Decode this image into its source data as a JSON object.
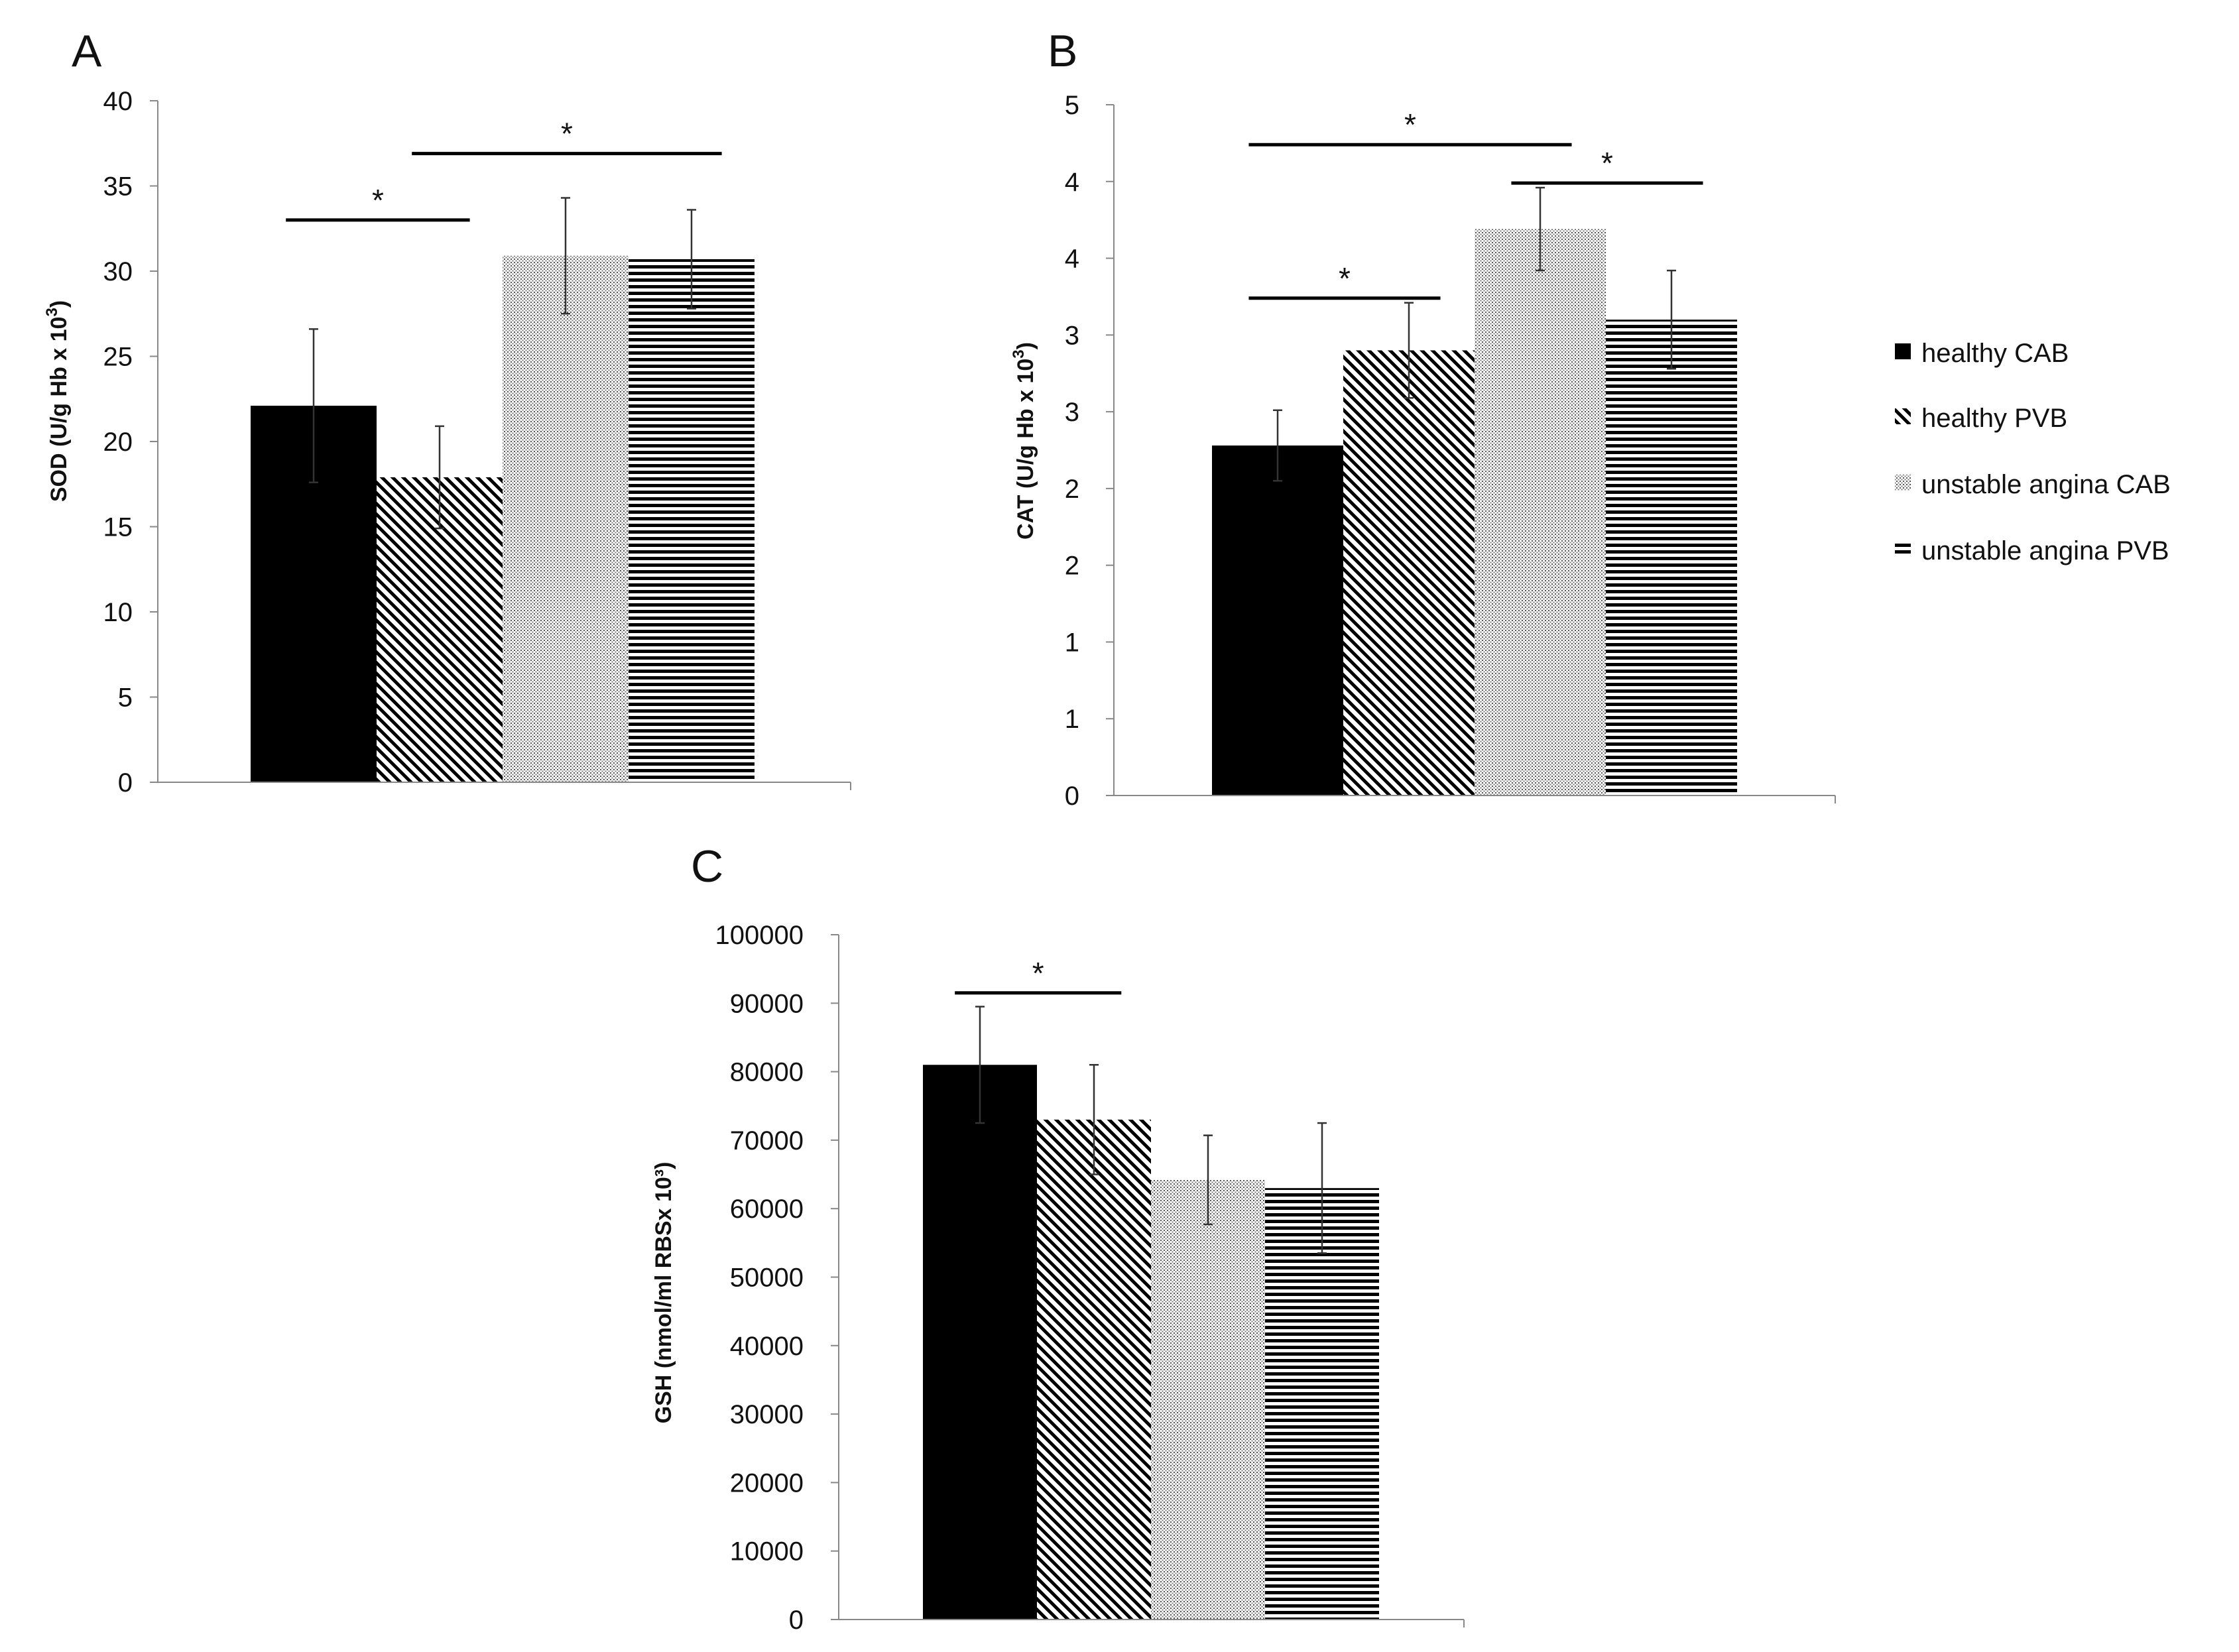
{
  "legend": {
    "items": [
      {
        "label": "healthy CAB",
        "pattern": "solid"
      },
      {
        "label": "healthy PVB",
        "pattern": "diag"
      },
      {
        "label": "unstable angina CAB",
        "pattern": "dots"
      },
      {
        "label": "unstable angina PVB",
        "pattern": "horiz"
      }
    ]
  },
  "colors": {
    "bar": "#000000",
    "axis": "#888888"
  },
  "chart_data": [
    {
      "panel": "A",
      "type": "bar",
      "ylabel": "SOD (U/g Hb x 10",
      "ylabel_sup": "3",
      "ylabel_close": ")",
      "ylim": [
        0,
        40
      ],
      "yticks": [
        0,
        5,
        10,
        15,
        20,
        25,
        30,
        35,
        40
      ],
      "ytick_labels": [
        "0",
        "5",
        "10",
        "15",
        "20",
        "25",
        "30",
        "35",
        "40"
      ],
      "categories": [
        "healthy CAB",
        "healthy PVB",
        "unstable angina CAB",
        "unstable angina PVB"
      ],
      "values": [
        22.1,
        17.9,
        30.9,
        30.7
      ],
      "errors": [
        4.5,
        3.0,
        3.4,
        2.9
      ],
      "significance": [
        {
          "from": 0,
          "to": 1,
          "y": 33,
          "label": "*"
        },
        {
          "from": 1,
          "to": 3,
          "y": 36.9,
          "label": "*"
        }
      ]
    },
    {
      "panel": "B",
      "type": "bar",
      "ylabel": "CAT (U/g Hb x 10",
      "ylabel_sup": "3",
      "ylabel_close": ")",
      "ylim": [
        0,
        4.5
      ],
      "yticks": [
        0,
        0.5,
        1,
        1.5,
        2,
        2.5,
        3,
        3.5,
        4,
        4.5
      ],
      "ytick_labels": [
        "0",
        "1",
        "1",
        "2",
        "2",
        "3",
        "3",
        "4",
        "4",
        "5"
      ],
      "categories": [
        "healthy CAB",
        "healthy PVB",
        "unstable angina CAB",
        "unstable angina PVB"
      ],
      "values": [
        2.28,
        2.9,
        3.69,
        3.1
      ],
      "errors": [
        0.23,
        0.31,
        0.27,
        0.32
      ],
      "significance": [
        {
          "from": 0,
          "to": 1,
          "y": 3.24,
          "label": "*"
        },
        {
          "from": 0,
          "to": 2,
          "y": 4.24,
          "label": "*"
        },
        {
          "from": 2,
          "to": 3,
          "y": 3.99,
          "label": "*"
        }
      ]
    },
    {
      "panel": "C",
      "type": "bar",
      "ylabel": "GSH (nmol/ml RBSx 10³)",
      "ylabel_sup": "",
      "ylabel_close": "",
      "ylim": [
        0,
        100000
      ],
      "yticks": [
        0,
        10000,
        20000,
        30000,
        40000,
        50000,
        60000,
        70000,
        80000,
        90000,
        100000
      ],
      "ytick_labels": [
        "0",
        "10000",
        "20000",
        "30000",
        "40000",
        "50000",
        "60000",
        "70000",
        "80000",
        "90000",
        "100000"
      ],
      "categories": [
        "healthy CAB",
        "healthy PVB",
        "unstable angina CAB",
        "unstable angina PVB"
      ],
      "values": [
        81000,
        73000,
        64200,
        63000
      ],
      "errors": [
        8500,
        8000,
        6500,
        9500
      ],
      "significance": [
        {
          "from": 0,
          "to": 1,
          "y": 91500,
          "label": "*"
        }
      ]
    }
  ]
}
